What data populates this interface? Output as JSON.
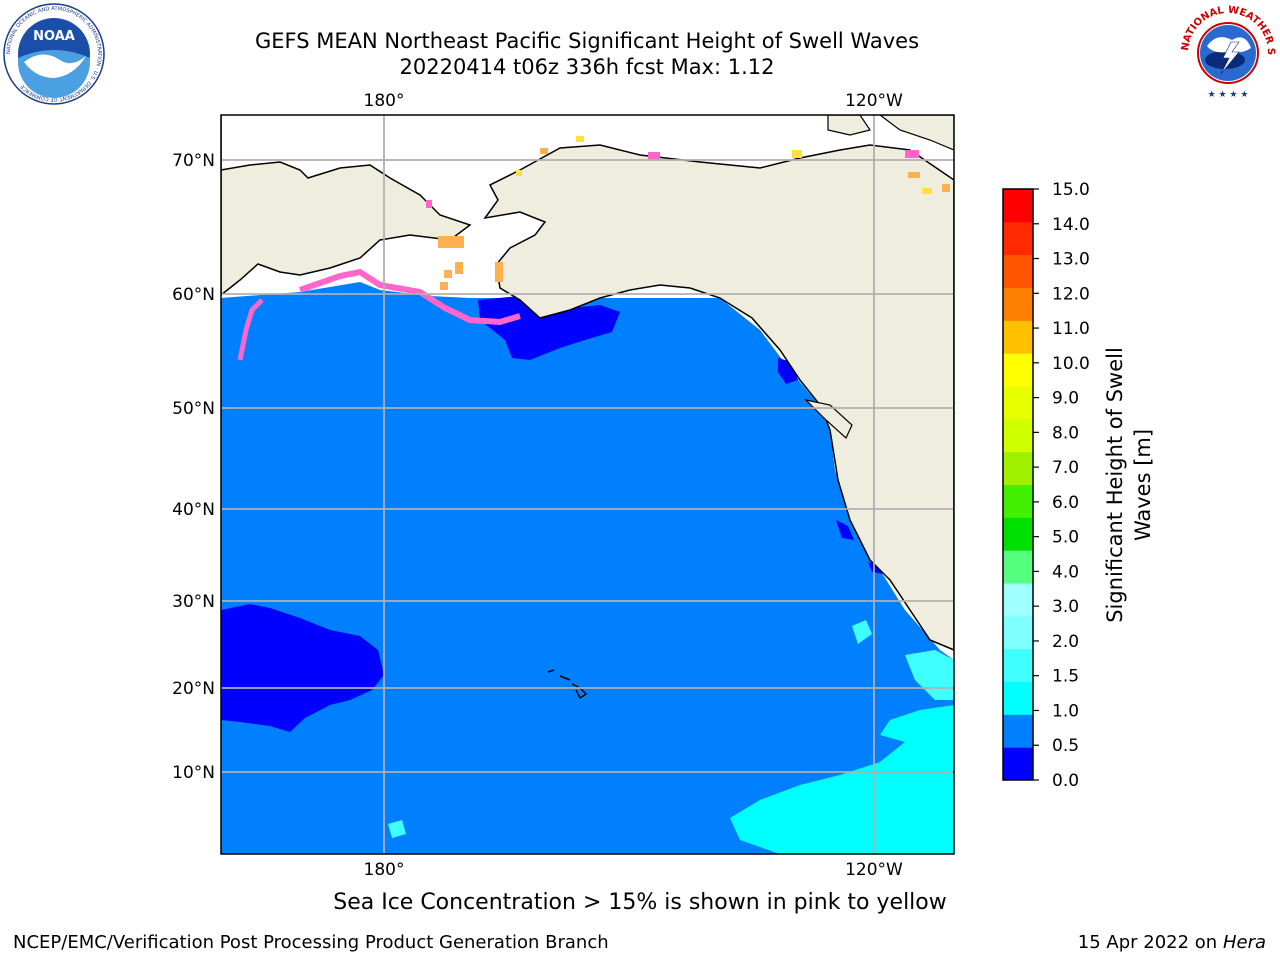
{
  "header": {
    "title_line1": "GEFS MEAN Northeast Pacific Significant Height of Swell Waves",
    "title_line2": "20220414 t06z 336h fcst   Max: 1.12"
  },
  "logos": {
    "left": {
      "icon": "noaa-logo-icon",
      "text": "NOAA",
      "ring_text": "NATIONAL OCEANIC AND ATMOSPHERIC ADMINISTRATION · U.S. DEPARTMENT OF COMMERCE"
    },
    "right": {
      "icon": "nws-logo-icon",
      "ring_text": "NATIONAL WEATHER SERVICE"
    }
  },
  "map": {
    "top_lon_labels": [
      "180°",
      "120°W"
    ],
    "bottom_lon_labels": [
      "180°",
      "120°W"
    ],
    "lat_labels": [
      "70°N",
      "60°N",
      "50°N",
      "40°N",
      "30°N",
      "20°N",
      "10°N"
    ],
    "colors": {
      "ocean_main": "#0080ff",
      "ocean_low": "#0000ff",
      "ocean_mid": "#00ffff",
      "ocean_mid_light": "#40ffff",
      "land": "#efedde",
      "ice_free": "#ffffff",
      "gridline": "#b0b0b0",
      "ice_pink": "#ff66cc",
      "ice_orange": "#ffb050",
      "ice_yellow": "#ffe040"
    }
  },
  "colorbar": {
    "title_line1": "Significant Height of Swell",
    "title_line2": "Waves [m]",
    "tick_labels": [
      "0.0",
      "0.5",
      "1.0",
      "1.5",
      "2.0",
      "3.0",
      "4.0",
      "5.0",
      "6.0",
      "7.0",
      "8.0",
      "9.0",
      "10.0",
      "11.0",
      "12.0",
      "13.0",
      "14.0",
      "15.0"
    ],
    "bin_colors": [
      "#0000ff",
      "#0080ff",
      "#00ffff",
      "#40ffff",
      "#80ffff",
      "#a0ffff",
      "#55ff80",
      "#00e000",
      "#40f000",
      "#a0f000",
      "#d0ff00",
      "#e8ff00",
      "#ffff00",
      "#ffc000",
      "#ff8000",
      "#ff5500",
      "#ff2a00",
      "#ff0000"
    ]
  },
  "footer": {
    "caption": "Sea Ice Concentration > 15% is shown in pink to yellow",
    "left": "NCEP/EMC/Verification Post Processing Product Generation Branch",
    "right_date": "15 Apr 2022 on ",
    "right_machine": "Hera"
  }
}
